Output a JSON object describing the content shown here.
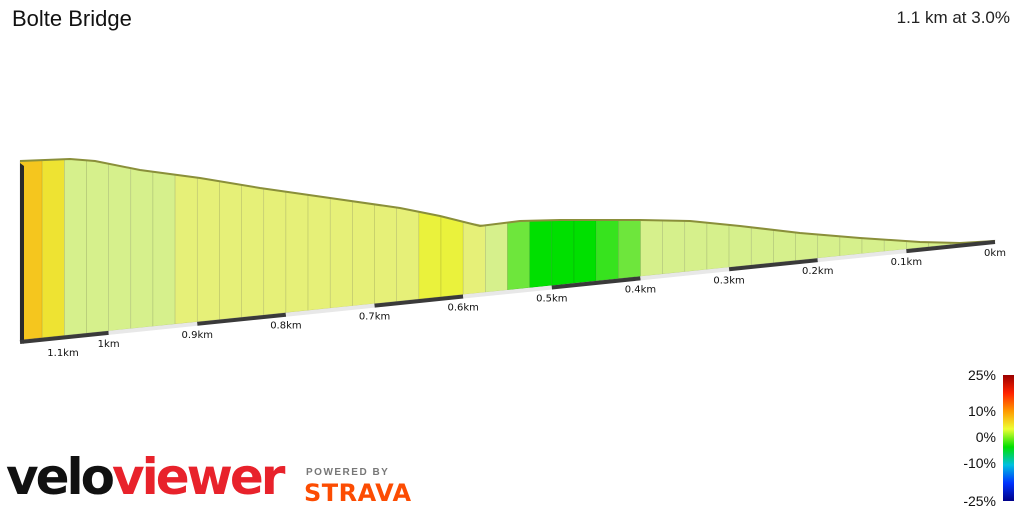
{
  "header": {
    "title": "Bolte Bridge",
    "summary": "1.1 km at 3.0%"
  },
  "chart_data": {
    "type": "area",
    "title": "Bolte Bridge",
    "distance_unit": "km",
    "tick_labels": [
      "1.1km",
      "1km",
      "0.9km",
      "0.8km",
      "0.7km",
      "0.6km",
      "0.5km",
      "0.4km",
      "0.3km",
      "0.2km",
      "0.1km",
      "0km"
    ],
    "grade_pct": [
      7,
      5,
      2,
      2,
      2,
      2,
      2,
      3,
      3,
      3,
      3,
      3,
      3,
      3,
      3,
      3,
      3,
      3,
      4,
      4,
      3,
      2,
      1,
      0,
      0,
      0,
      0.5,
      1,
      2,
      2,
      2,
      2,
      2,
      2,
      2,
      2,
      2,
      2,
      2,
      2,
      2,
      2,
      2,
      3
    ]
  },
  "legend": {
    "ticks": [
      "25%",
      "10%",
      "0%",
      "-10%",
      "-25%"
    ],
    "colors": [
      "#9a0000",
      "#ff2200",
      "#ff9900",
      "#eeff33",
      "#00e000",
      "#00c0e0",
      "#0033ff",
      "#000088"
    ]
  },
  "branding": {
    "logo_part1": "velo",
    "logo_part2": "viewer",
    "powered_by": "POWERED BY",
    "strava": "STRAVA"
  }
}
